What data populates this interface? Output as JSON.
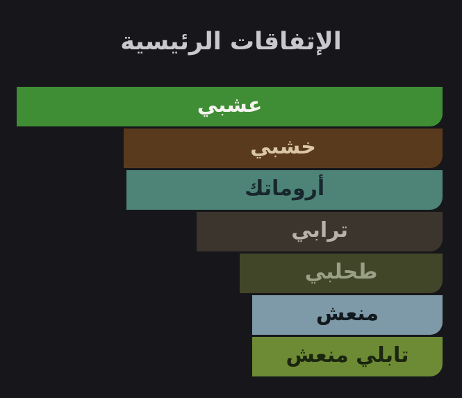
{
  "page": {
    "background_color": "#17171b",
    "title": "الإتفاقات الرئيسية",
    "title_color": "#c9c9cd"
  },
  "chart_data": {
    "type": "bar",
    "orientation": "horizontal",
    "direction": "rtl",
    "title": "الإتفاقات الرئيسية",
    "xlabel": "",
    "ylabel": "",
    "axes_visible": false,
    "grid": false,
    "legend": false,
    "value_unit": "percent of longest bar",
    "categories": [
      "عشبي",
      "خشبي",
      "أروماتك",
      "ترابي",
      "طحلبي",
      "منعش",
      "تابلي منعش"
    ],
    "values": [
      100,
      74.9,
      74.2,
      57.7,
      47.6,
      44.7,
      44.7
    ],
    "bars": [
      {
        "label": "عشبي",
        "value": 100,
        "bar_color": "#3f8e35",
        "label_color": "#f5f4ef"
      },
      {
        "label": "خشبي",
        "value": 74.9,
        "bar_color": "#5a3a1d",
        "label_color": "#dbc7a7"
      },
      {
        "label": "أروماتك",
        "value": 74.2,
        "bar_color": "#4d8477",
        "label_color": "#18272d"
      },
      {
        "label": "ترابي",
        "value": 57.7,
        "bar_color": "#3b352d",
        "label_color": "#b8b1a7"
      },
      {
        "label": "طحلبي",
        "value": 47.6,
        "bar_color": "#424629",
        "label_color": "#99a086"
      },
      {
        "label": "منعش",
        "value": 44.7,
        "bar_color": "#7e99a7",
        "label_color": "#12191e"
      },
      {
        "label": "تابلي منعش",
        "value": 44.7,
        "bar_color": "#6d8b34",
        "label_color": "#1b250f"
      }
    ]
  }
}
